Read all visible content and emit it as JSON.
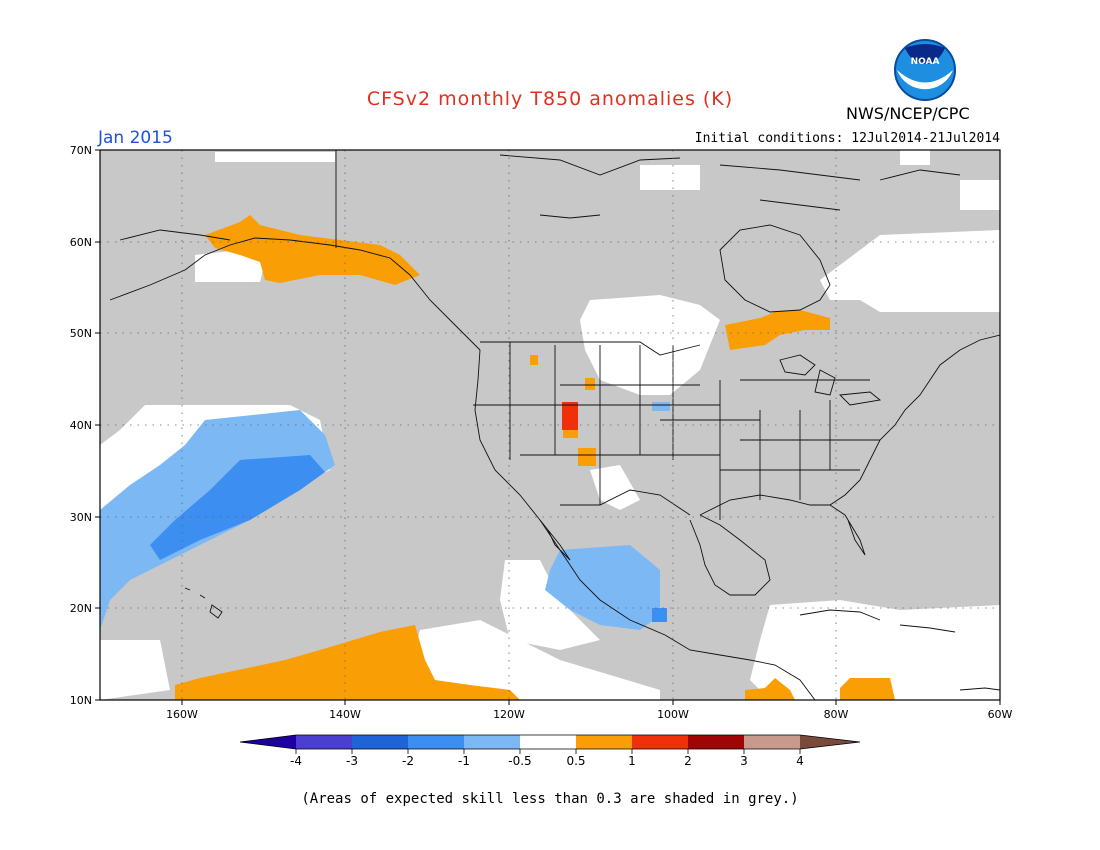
{
  "header": {
    "title": "CFSv2 monthly T850 anomalies (K)",
    "valid_month": "Jan 2015",
    "agency": "NWS/NCEP/CPC",
    "initial_conditions": "Initial conditions: 12Jul2014-21Jul2014",
    "logo_text": "NOAA"
  },
  "map": {
    "region": "North America and Northeast Pacific",
    "lon_range": [
      -170,
      -60
    ],
    "lat_range": [
      10,
      70
    ],
    "lat_ticks": [
      "70N",
      "60N",
      "50N",
      "40N",
      "30N",
      "20N",
      "10N"
    ],
    "lon_ticks": [
      "160W",
      "140W",
      "120W",
      "100W",
      "80W",
      "60W"
    ],
    "skill_mask_color": "#c8c8c8",
    "grid": "dotted"
  },
  "colorbar": {
    "levels": [
      "-4",
      "-3",
      "-2",
      "-1",
      "-0.5",
      "0.5",
      "1",
      "2",
      "3",
      "4"
    ],
    "colors": [
      "#1e00a0",
      "#4b3fcf",
      "#1f63d6",
      "#3c8ef0",
      "#7cb8f4",
      "#ffffff",
      "#f99e05",
      "#f0300a",
      "#a00505",
      "#c89a8c",
      "#7a4a3a"
    ]
  },
  "footnote": "(Areas of expected skill less than 0.3 are shaded in grey.)"
}
